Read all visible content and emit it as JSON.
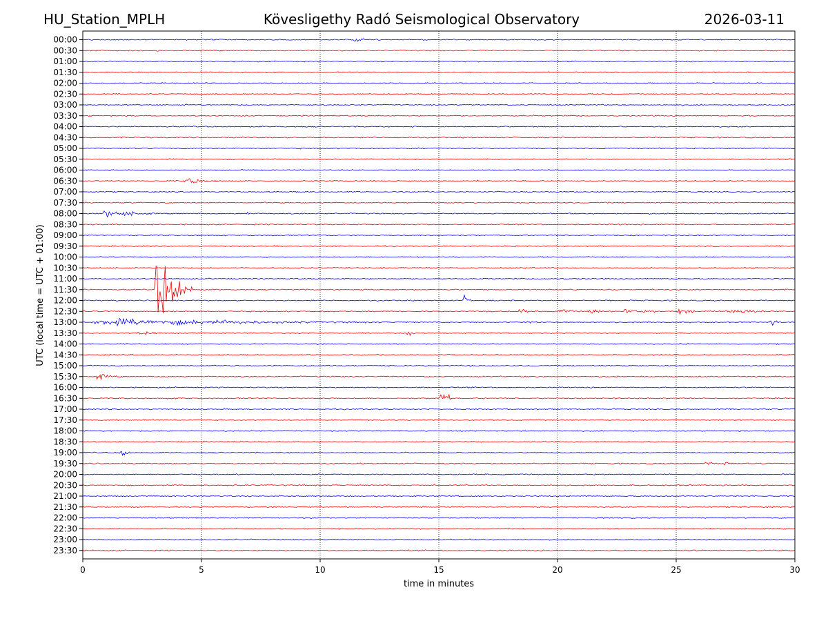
{
  "header": {
    "station": "HU_Station_MPLH",
    "observatory": "Kövesligethy Radó Seismological Observatory",
    "date": "2026-03-11"
  },
  "chart_data": {
    "type": "line",
    "title": "Kövesligethy Radó Seismological Observatory",
    "xlabel": "time in minutes",
    "ylabel": "UTC (local time = UTC + 01:00)",
    "xlim": [
      0,
      30
    ],
    "x_ticks": [
      "0",
      "5",
      "10",
      "15",
      "20",
      "25",
      "30"
    ],
    "x_gridlines": [
      5,
      10,
      15,
      20,
      25
    ],
    "grid": "vertical dotted",
    "row_labels": [
      "00:00",
      "00:30",
      "01:00",
      "01:30",
      "02:00",
      "02:30",
      "03:00",
      "03:30",
      "04:00",
      "04:30",
      "05:00",
      "05:30",
      "06:00",
      "06:30",
      "07:00",
      "07:30",
      "08:00",
      "08:30",
      "09:00",
      "09:30",
      "10:00",
      "10:30",
      "11:00",
      "11:30",
      "12:00",
      "12:30",
      "13:00",
      "13:30",
      "14:00",
      "14:30",
      "15:00",
      "15:30",
      "16:00",
      "16:30",
      "17:00",
      "17:30",
      "18:00",
      "18:30",
      "19:00",
      "19:30",
      "20:00",
      "20:30",
      "21:00",
      "21:30",
      "22:00",
      "22:30",
      "23:00",
      "23:30"
    ],
    "series_colors": [
      "#0000ee",
      "#ee0000"
    ],
    "noise_amplitude": 1,
    "events": [
      {
        "row": "00:00",
        "start": 11.3,
        "end": 13.5,
        "amplitude": 4
      },
      {
        "row": "06:30",
        "start": 4.2,
        "end": 6.2,
        "amplitude": 9
      },
      {
        "row": "06:30",
        "start": 16.6,
        "end": 16.8,
        "amplitude": 4
      },
      {
        "row": "07:00",
        "start": 9.1,
        "end": 9.3,
        "amplitude": 5
      },
      {
        "row": "08:00",
        "start": 0.8,
        "end": 3.2,
        "amplitude": 11
      },
      {
        "row": "08:00",
        "start": 6.9,
        "end": 7.3,
        "amplitude": 4
      },
      {
        "row": "08:30",
        "start": 22.6,
        "end": 23.0,
        "amplitude": 4
      },
      {
        "row": "10:30",
        "start": 4.2,
        "end": 4.5,
        "amplitude": 4
      },
      {
        "row": "11:30",
        "start": 3.0,
        "end": 4.6,
        "amplitude": 80
      },
      {
        "row": "12:00",
        "start": 16.0,
        "end": 16.5,
        "amplitude": 12
      },
      {
        "row": "12:30",
        "start": 18.3,
        "end": 19.0,
        "amplitude": 9
      },
      {
        "row": "12:30",
        "start": 20.0,
        "end": 20.9,
        "amplitude": 9
      },
      {
        "row": "12:30",
        "start": 21.3,
        "end": 22.2,
        "amplitude": 8
      },
      {
        "row": "12:30",
        "start": 22.7,
        "end": 24.5,
        "amplitude": 8
      },
      {
        "row": "12:30",
        "start": 25.0,
        "end": 26.7,
        "amplitude": 7
      },
      {
        "row": "12:30",
        "start": 27.0,
        "end": 30.0,
        "amplitude": 7
      },
      {
        "row": "13:00",
        "start": 0.0,
        "end": 14.3,
        "amplitude": 9
      },
      {
        "row": "13:00",
        "start": 18.4,
        "end": 19.3,
        "amplitude": 7
      },
      {
        "row": "13:00",
        "start": 28.9,
        "end": 29.6,
        "amplitude": 8
      },
      {
        "row": "13:30",
        "start": 2.2,
        "end": 3.5,
        "amplitude": 8
      },
      {
        "row": "13:30",
        "start": 13.6,
        "end": 14.3,
        "amplitude": 9
      },
      {
        "row": "14:00",
        "start": 25.4,
        "end": 25.7,
        "amplitude": 4
      },
      {
        "row": "15:30",
        "start": 0.5,
        "end": 1.6,
        "amplitude": 8
      },
      {
        "row": "16:30",
        "start": 15.0,
        "end": 15.6,
        "amplitude": 28
      },
      {
        "row": "16:30",
        "start": 19.0,
        "end": 19.3,
        "amplitude": 3
      },
      {
        "row": "19:00",
        "start": 1.5,
        "end": 2.1,
        "amplitude": 14
      },
      {
        "row": "19:30",
        "start": 26.2,
        "end": 26.6,
        "amplitude": 10
      },
      {
        "row": "19:30",
        "start": 27.0,
        "end": 27.5,
        "amplitude": 10
      }
    ]
  }
}
